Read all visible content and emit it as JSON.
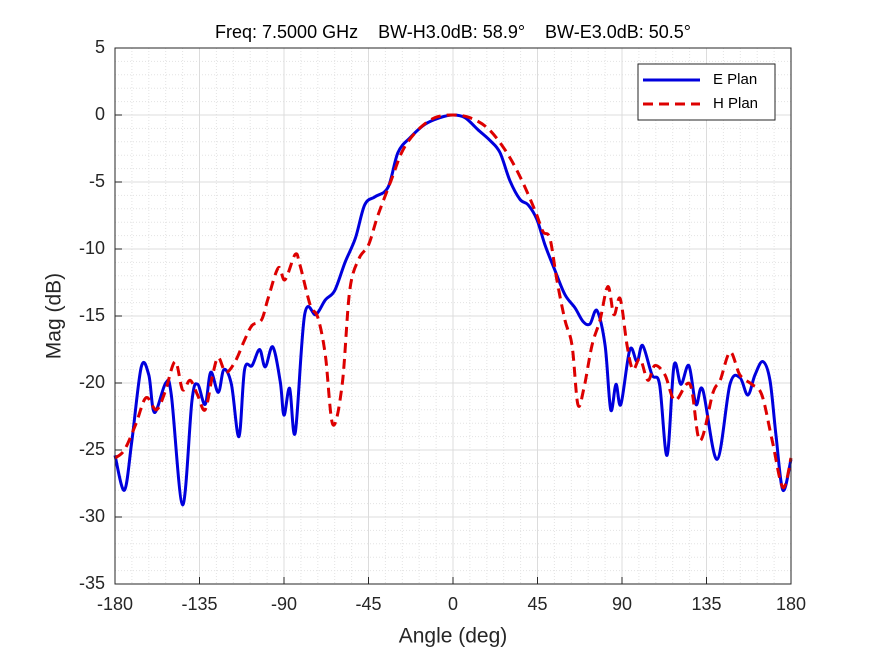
{
  "chart_data": {
    "type": "line",
    "title": "Freq: 7.5000 GHz    BW-H3.0dB: 58.9°    BW-E3.0dB: 50.5°",
    "xlabel": "Angle (deg)",
    "ylabel": "Mag (dB)",
    "xlim": [
      -180,
      180
    ],
    "xticks": [
      -180,
      -135,
      -90,
      -45,
      0,
      45,
      90,
      135,
      180
    ],
    "ylim": [
      -35,
      5
    ],
    "yticks": [
      -35,
      -30,
      -25,
      -20,
      -15,
      -10,
      -5,
      0,
      5
    ],
    "grid": true,
    "minor_grid": true,
    "legend": "northeast",
    "series": [
      {
        "name": "E Plan",
        "color": "#0000dd",
        "linestyle": "solid",
        "x": [
          -180,
          -175,
          -171,
          -166,
          -162,
          -159,
          -153,
          -150,
          -144,
          -139,
          -136,
          -132,
          -129,
          -125,
          -122,
          -118,
          -114,
          -111,
          -107,
          -103,
          -100,
          -96,
          -92,
          -90,
          -87,
          -84,
          -79,
          -73,
          -68,
          -63,
          -57.5,
          -52,
          -47,
          -41.5,
          -34.6,
          -29.3,
          -22.9,
          -15,
          -7,
          0,
          6.4,
          13.3,
          19.7,
          25,
          30.3,
          35.7,
          40,
          44.7,
          49,
          54.3,
          59.6,
          65,
          69.2,
          72.9,
          76.7,
          81,
          84,
          86.8,
          89.4,
          94.2,
          98,
          101,
          106,
          110,
          114,
          117.7,
          121.4,
          125.6,
          129.4,
          133,
          140.6,
          147.5,
          152.8,
          157,
          160.8,
          165,
          168.8,
          172,
          175.7,
          180
        ],
        "values": [
          -25.4,
          -28,
          -24.3,
          -18.8,
          -19.4,
          -22.2,
          -20,
          -20.9,
          -29.1,
          -21.3,
          -20.1,
          -21.6,
          -19.2,
          -20.7,
          -19,
          -20.1,
          -24,
          -19,
          -18.7,
          -17.5,
          -18.8,
          -17.3,
          -19.9,
          -22.4,
          -20.4,
          -23.7,
          -14.9,
          -14.9,
          -13.8,
          -13.1,
          -11,
          -9.2,
          -6.7,
          -6.1,
          -5.4,
          -2.8,
          -1.7,
          -0.7,
          -0.2,
          0,
          -0.2,
          -1.1,
          -1.9,
          -2.8,
          -4.9,
          -6.3,
          -6.7,
          -7.8,
          -9.7,
          -11.6,
          -13.4,
          -14.4,
          -15.4,
          -15.6,
          -14.6,
          -17.2,
          -22,
          -20.1,
          -21.6,
          -17.5,
          -18.4,
          -17.2,
          -19.4,
          -20.1,
          -25.4,
          -18.7,
          -20.1,
          -18.7,
          -21.6,
          -20.5,
          -25.7,
          -20.1,
          -19.6,
          -20.9,
          -19.4,
          -18.4,
          -19.8,
          -23.9,
          -28,
          -25.7
        ]
      },
      {
        "name": "H Plan",
        "color": "#dd0000",
        "linestyle": "dashed",
        "x": [
          -180,
          -175,
          -169,
          -163.5,
          -158,
          -153.4,
          -148,
          -144,
          -140,
          -136,
          -132,
          -128,
          -125,
          -121,
          -116,
          -111,
          -107,
          -102,
          -98.5,
          -93,
          -89.5,
          -84,
          -81.5,
          -76,
          -72,
          -68,
          -64,
          -59,
          -55,
          -50,
          -45,
          -40,
          -33,
          -26.6,
          -18.6,
          -9.6,
          0,
          9,
          18.6,
          27.7,
          35.7,
          43.6,
          47.9,
          51.6,
          55.3,
          59.6,
          63.4,
          66.5,
          69.7,
          74,
          78.3,
          82.5,
          85.7,
          89,
          92.7,
          95.8,
          99.6,
          103.8,
          107.5,
          112.9,
          118.2,
          126.2,
          131.5,
          138.5,
          142.3,
          147.6,
          152.8,
          159.2,
          164.5,
          170,
          175.7,
          180
        ],
        "values": [
          -25.6,
          -25,
          -23.1,
          -21.1,
          -22,
          -20.7,
          -18.4,
          -20.5,
          -19.8,
          -20.9,
          -22,
          -19.4,
          -18.1,
          -19.2,
          -18.4,
          -16.8,
          -15.7,
          -15.3,
          -13.7,
          -11.4,
          -12.3,
          -10.4,
          -11.2,
          -14.2,
          -15.1,
          -17.9,
          -23.1,
          -20.1,
          -13.1,
          -10.7,
          -9.7,
          -7.5,
          -4.9,
          -2.6,
          -1.1,
          -0.2,
          0,
          -0.2,
          -1,
          -2.6,
          -4.6,
          -7.1,
          -8.7,
          -9.2,
          -12.3,
          -15.3,
          -17.2,
          -21.6,
          -20.4,
          -17.2,
          -15.3,
          -12.8,
          -14.9,
          -13.7,
          -17.2,
          -19,
          -18.2,
          -19.8,
          -18.7,
          -19.4,
          -21.3,
          -20.1,
          -24.3,
          -20.7,
          -19.8,
          -17.7,
          -19.4,
          -20.1,
          -20.9,
          -24.3,
          -27.8,
          -25.6
        ]
      }
    ]
  }
}
